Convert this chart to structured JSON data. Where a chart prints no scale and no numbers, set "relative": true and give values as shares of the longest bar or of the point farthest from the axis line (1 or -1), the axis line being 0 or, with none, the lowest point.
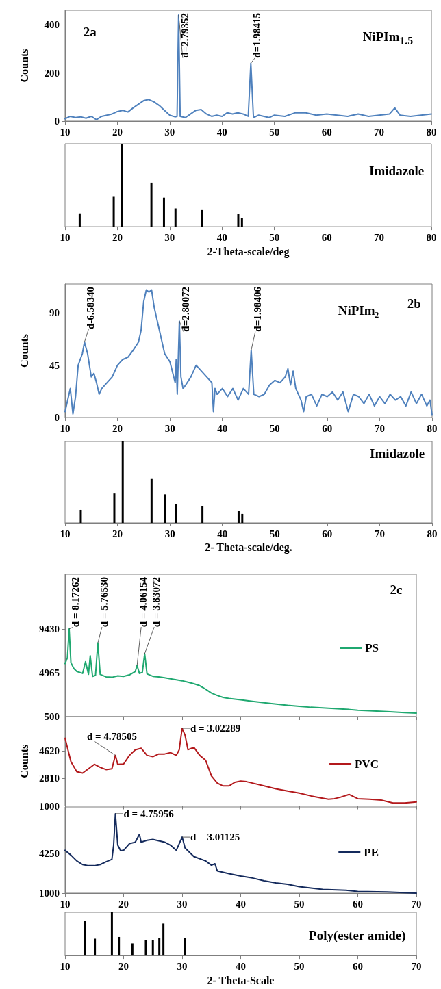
{
  "chart_data": [
    {
      "type": "line",
      "ylabel": "Counts",
      "xlim": [
        10,
        80
      ],
      "xticks": [
        10,
        20,
        30,
        40,
        50,
        60,
        70,
        80
      ],
      "ylim": [
        0,
        460
      ],
      "yticks": [
        0,
        200,
        400
      ],
      "marker": "none",
      "grid": false,
      "legend": false,
      "color": "#4f81bd",
      "x": [
        10,
        11,
        12,
        13,
        14,
        15,
        16,
        17,
        18,
        19,
        20,
        21,
        22,
        23,
        24,
        25,
        26,
        27,
        28,
        29,
        30,
        31,
        31.4,
        31.7,
        32,
        33,
        34,
        35,
        36,
        37,
        38,
        39,
        40,
        41,
        42,
        43,
        44,
        45,
        45.5,
        46,
        47,
        48,
        49,
        50,
        52,
        54,
        56,
        58,
        60,
        62,
        64,
        66,
        68,
        70,
        72,
        73,
        74,
        76,
        78,
        80
      ],
      "values": [
        10,
        20,
        15,
        18,
        12,
        20,
        6,
        20,
        25,
        30,
        40,
        45,
        38,
        55,
        70,
        85,
        90,
        80,
        65,
        45,
        25,
        18,
        20,
        440,
        20,
        15,
        30,
        45,
        48,
        30,
        20,
        25,
        20,
        35,
        30,
        35,
        30,
        20,
        240,
        15,
        25,
        20,
        15,
        25,
        20,
        35,
        35,
        25,
        30,
        25,
        20,
        30,
        20,
        25,
        30,
        55,
        25,
        20,
        25,
        30
      ],
      "annotations": [
        "2a",
        "NiPIm$_{1.5}$",
        {
          "text": "d=2.79352",
          "x": 31.7,
          "y": 440
        },
        {
          "text": "d=1.98415",
          "x": 45.5,
          "y": 240
        }
      ]
    },
    {
      "type": "bar",
      "relative": true,
      "tick_labels": "x",
      "xlabel": "2-Theta-scale/deg",
      "xlim": [
        10,
        80
      ],
      "xticks": [
        10,
        20,
        30,
        40,
        50,
        60,
        70,
        80
      ],
      "color": "#000000",
      "x": [
        12.8,
        19.3,
        20.9,
        26.5,
        28.9,
        31.1,
        36.2,
        43.1,
        43.8
      ],
      "values": [
        0.16,
        0.36,
        1,
        0.53,
        0.35,
        0.22,
        0.2,
        0.15,
        0.1
      ],
      "annotations": [
        "Imidazole"
      ]
    },
    {
      "type": "line",
      "ylabel": "Counts",
      "xlim": [
        10,
        80
      ],
      "xticks": [
        10,
        20,
        30,
        40,
        50,
        60,
        70,
        80
      ],
      "ylim": [
        0,
        115
      ],
      "yticks": [
        0,
        45,
        90
      ],
      "marker": "none",
      "grid": false,
      "legend": false,
      "color": "#4f81bd",
      "x": [
        10,
        10.5,
        11,
        11.5,
        12,
        12.5,
        13.3,
        13.7,
        14.3,
        15,
        15.5,
        16,
        16.5,
        17,
        18,
        19,
        20,
        21,
        22,
        23,
        24,
        24.5,
        25,
        25.5,
        26,
        26.5,
        27,
        27.5,
        28,
        29,
        30,
        31,
        31.2,
        31.4,
        31.8,
        32.1,
        32.5,
        33,
        34,
        35,
        36,
        37,
        38,
        38.3,
        38.6,
        39,
        40,
        41,
        42,
        43,
        44,
        45,
        45.5,
        46,
        47,
        48,
        49,
        50,
        51,
        52,
        52.5,
        53,
        53.5,
        54,
        55,
        55.5,
        56,
        57,
        58,
        59,
        60,
        61,
        62,
        63,
        64,
        65,
        66,
        67,
        68,
        69,
        70,
        71,
        72,
        73,
        74,
        75,
        76,
        77,
        78,
        79,
        79.6,
        80
      ],
      "values": [
        5,
        15,
        25,
        3,
        18,
        45,
        55,
        65,
        55,
        35,
        38,
        30,
        20,
        25,
        30,
        35,
        45,
        50,
        52,
        58,
        65,
        75,
        100,
        110,
        108,
        110,
        95,
        85,
        75,
        55,
        48,
        30,
        50,
        20,
        83,
        35,
        25,
        28,
        35,
        45,
        40,
        35,
        30,
        5,
        25,
        20,
        25,
        18,
        25,
        15,
        25,
        20,
        58,
        20,
        18,
        20,
        28,
        32,
        30,
        35,
        42,
        28,
        40,
        25,
        15,
        5,
        18,
        20,
        10,
        20,
        18,
        22,
        15,
        22,
        5,
        20,
        18,
        12,
        20,
        10,
        18,
        12,
        20,
        15,
        18,
        10,
        22,
        12,
        20,
        10,
        15,
        2
      ],
      "annotations": [
        "NiPIm₂",
        "2b",
        {
          "text": "d-6.58340",
          "x": 13.7,
          "y": 65
        },
        {
          "text": "d=2.80072",
          "x": 31.8,
          "y": 83
        },
        {
          "text": "d=1.98406",
          "x": 45.5,
          "y": 58
        }
      ]
    },
    {
      "type": "bar",
      "relative": true,
      "tick_labels": "x",
      "xlabel": "2- Theta-scale/deg.",
      "xlim": [
        10,
        80
      ],
      "xticks": [
        10,
        20,
        30,
        40,
        50,
        60,
        70,
        80
      ],
      "color": "#000000",
      "x": [
        13,
        19.4,
        21,
        26.5,
        29.1,
        31.2,
        36.2,
        43.1,
        43.8
      ],
      "values": [
        0.16,
        0.36,
        1,
        0.54,
        0.35,
        0.23,
        0.21,
        0.15,
        0.11
      ],
      "annotations": [
        "Imidazole"
      ]
    },
    {
      "type": "line",
      "tick_labels": "y",
      "xlim": [
        10,
        70
      ],
      "xticks": [
        10,
        20,
        30,
        40,
        50,
        60,
        70
      ],
      "ylim": [
        500,
        15000
      ],
      "yticks": [
        500,
        4965,
        9430
      ],
      "marker": "none",
      "grid": false,
      "legend": "right",
      "series": [
        {
          "name": "PS",
          "color": "#1fa870",
          "x": [
            10,
            10.4,
            10.7,
            11,
            11.5,
            12,
            13,
            13.5,
            14,
            14.3,
            14.7,
            15.2,
            15.6,
            16,
            17,
            18,
            19,
            20,
            21,
            22,
            22.3,
            22.7,
            23.2,
            23.6,
            24,
            25,
            26,
            27,
            28,
            29,
            30,
            31,
            32,
            33,
            34,
            35,
            36,
            37,
            38,
            40,
            42,
            45,
            48,
            50,
            52,
            55,
            58,
            60,
            62,
            65,
            68,
            70
          ],
          "values": [
            5900,
            6500,
            9430,
            6000,
            5400,
            5100,
            4900,
            6100,
            4800,
            6700,
            4600,
            4700,
            8000,
            4800,
            4550,
            4500,
            4650,
            4600,
            4750,
            5100,
            5700,
            4900,
            5000,
            6900,
            4850,
            4600,
            4550,
            4450,
            4350,
            4250,
            4150,
            4000,
            3850,
            3650,
            3300,
            2900,
            2650,
            2450,
            2350,
            2200,
            2050,
            1850,
            1650,
            1550,
            1450,
            1350,
            1250,
            1150,
            1100,
            1000,
            900,
            850
          ]
        }
      ],
      "annotations": [
        "2c",
        {
          "text": "d = 8.17262",
          "x": 10.7,
          "y": 9430
        },
        {
          "text": "d = 5.76530",
          "x": 15.6,
          "y": 8000
        },
        {
          "text": "d = 4.06154",
          "x": 22.3,
          "y": 5700
        },
        {
          "text": "d = 3.83072",
          "x": 23.6,
          "y": 6900
        }
      ]
    },
    {
      "type": "line",
      "tick_labels": "y",
      "ylabel": "Counts",
      "xlim": [
        10,
        70
      ],
      "xticks": [
        10,
        20,
        30,
        40,
        50,
        60,
        70
      ],
      "ylim": [
        1000,
        6900
      ],
      "yticks": [
        1000,
        2810,
        4620
      ],
      "marker": "none",
      "grid": false,
      "legend": "right",
      "series": [
        {
          "name": "PVC",
          "color": "#b3191c",
          "x": [
            10,
            11,
            12,
            13,
            14,
            15,
            16,
            17,
            18,
            18.6,
            19,
            20,
            21,
            22,
            23,
            24,
            25,
            26,
            27,
            28,
            29,
            29.5,
            30,
            30.5,
            31,
            32,
            33,
            34,
            35,
            36,
            37,
            38,
            39,
            40,
            41,
            42,
            44,
            46,
            48,
            50,
            52,
            54,
            55,
            56,
            57,
            58.5,
            60,
            62,
            64,
            66,
            68,
            70
          ],
          "values": [
            5470,
            3930,
            3260,
            3170,
            3450,
            3750,
            3550,
            3400,
            3450,
            4340,
            3750,
            3770,
            4340,
            4710,
            4810,
            4340,
            4250,
            4430,
            4430,
            4520,
            4340,
            4710,
            6130,
            5660,
            4710,
            4870,
            4340,
            4020,
            2980,
            2510,
            2320,
            2320,
            2560,
            2640,
            2600,
            2510,
            2320,
            2130,
            1980,
            1850,
            1660,
            1510,
            1440,
            1480,
            1570,
            1760,
            1480,
            1440,
            1380,
            1190,
            1190,
            1260
          ]
        }
      ],
      "annotations": [
        {
          "text": "d = 4.78505",
          "x": 18.6,
          "y": 4340
        },
        {
          "text": "d = 3.02289",
          "x": 30,
          "y": 6130
        }
      ]
    },
    {
      "type": "line",
      "xlim": [
        10,
        70
      ],
      "xticks": [
        10,
        20,
        30,
        40,
        50,
        60,
        70
      ],
      "ylim": [
        1000,
        8000
      ],
      "yticks": [
        1000,
        4250
      ],
      "marker": "none",
      "grid": false,
      "legend": "right",
      "series": [
        {
          "name": "PE",
          "color": "#142a5c",
          "x": [
            10,
            11,
            12,
            13,
            14,
            15,
            16,
            17,
            18,
            18.3,
            18.6,
            19,
            19.5,
            20,
            21,
            22,
            22.7,
            23,
            24,
            25,
            26,
            27,
            28,
            29,
            30,
            30.5,
            32,
            34,
            35,
            35.6,
            36,
            38,
            40,
            42,
            44,
            46,
            48,
            50,
            54,
            58,
            60,
            65,
            70
          ],
          "values": [
            4480,
            4090,
            3620,
            3320,
            3230,
            3230,
            3320,
            3550,
            3740,
            4900,
            7450,
            4900,
            4440,
            4480,
            5020,
            5140,
            5780,
            5140,
            5290,
            5360,
            5250,
            5140,
            4900,
            4480,
            5550,
            4670,
            3970,
            3620,
            3270,
            3390,
            2810,
            2580,
            2390,
            2230,
            2000,
            1830,
            1720,
            1530,
            1300,
            1230,
            1140,
            1100,
            1000
          ]
        }
      ],
      "annotations": [
        {
          "text": "d = 4.75956",
          "x": 18.6,
          "y": 7450
        },
        {
          "text": "d = 3.01125",
          "x": 30,
          "y": 5550
        }
      ]
    },
    {
      "type": "bar",
      "relative": true,
      "tick_labels": "x",
      "xlabel": "2- Theta-Scale",
      "xlim": [
        10,
        70
      ],
      "xticks": [
        10,
        20,
        30,
        40,
        50,
        60,
        70
      ],
      "color": "#000000",
      "x": [
        13.4,
        15.1,
        18,
        19.2,
        21.5,
        23.8,
        25,
        26.1,
        26.8,
        30.5
      ],
      "values": [
        0.81,
        0.39,
        1,
        0.43,
        0.28,
        0.36,
        0.35,
        0.41,
        0.74,
        0.4
      ],
      "annotations": [
        "Poly(ester amide)"
      ]
    }
  ]
}
